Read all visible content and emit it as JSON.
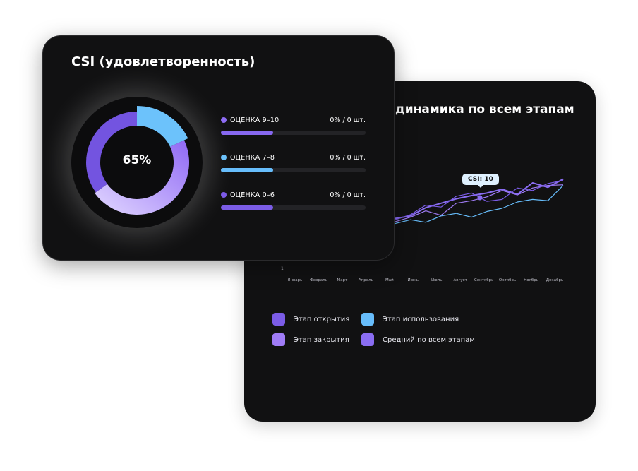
{
  "back_card": {
    "title": "динамика по всем этапам",
    "tooltip": "CSI: 10",
    "y_tick": "1",
    "legend": [
      {
        "label": "Этап открытия",
        "color": "#7b5ce6"
      },
      {
        "label": "Этап использования",
        "color": "#67bdfb"
      },
      {
        "label": "Этап закрытия",
        "color": "#a07cf6"
      },
      {
        "label": "Средний по всем этапам",
        "color": "#8a6df2"
      }
    ]
  },
  "front_card": {
    "title": "CSI (удовлетворенность)",
    "donut_value": "65%",
    "scores": [
      {
        "label": "ОЦЕНКА 9–10",
        "value": "0% / 0 шт.",
        "dot_color": "#8d6cf3",
        "bar_color": "#8768f0",
        "fill": 0.36
      },
      {
        "label": "ОЦЕНКА 7–8",
        "value": "0% / 0 шт.",
        "dot_color": "#6cc2fb",
        "bar_color": "#67bdfb",
        "fill": 0.36
      },
      {
        "label": "ОЦЕНКА 0–6",
        "value": "0% / 0 шт.",
        "dot_color": "#7c5ae8",
        "bar_color": "#7b5ce6",
        "fill": 0.36
      }
    ]
  },
  "chart_data": [
    {
      "type": "pie",
      "title": "CSI (удовлетворенность)",
      "center_label": "65%",
      "segments": [
        {
          "color": "#6cc2fb",
          "value": 18
        },
        {
          "color": "#a98af8",
          "value": 47
        },
        {
          "color": "#7354e0",
          "value": 35
        }
      ]
    },
    {
      "type": "line",
      "title": "динамика по всем этапам",
      "categories": [
        "Январь",
        "Февраль",
        "Март",
        "Апрель",
        "Май",
        "Июнь",
        "Июль",
        "Август",
        "Сентябрь",
        "Октябрь",
        "Ноябрь",
        "Декабрь"
      ],
      "annotation": "CSI: 10",
      "series": [
        {
          "color": "#67bdfb",
          "values": [
            2.6,
            3.2,
            2.8,
            3.8,
            4.2,
            3.6,
            4.5,
            5.0,
            6.0,
            6.4,
            6.2,
            8.6
          ]
        },
        {
          "color": "#a07cf6",
          "values": [
            2.9,
            3.6,
            4.6,
            3.9,
            5.8,
            6.2,
            6.8,
            7.8,
            7.1,
            8.2,
            8.6,
            8.7
          ]
        },
        {
          "color": "#8a6df2",
          "values": [
            3.4,
            3.8,
            5.1,
            5.8,
            6.5,
            7.0,
            7.4,
            8.0,
            7.2,
            9.0,
            8.3,
            9.6
          ]
        },
        {
          "color": "#7b5ce6",
          "values": [
            3.2,
            4.0,
            5.5,
            5.2,
            6.9,
            7.4,
            6.1,
            6.4,
            8.2,
            7.8,
            8.9,
            9.4
          ]
        }
      ]
    }
  ]
}
